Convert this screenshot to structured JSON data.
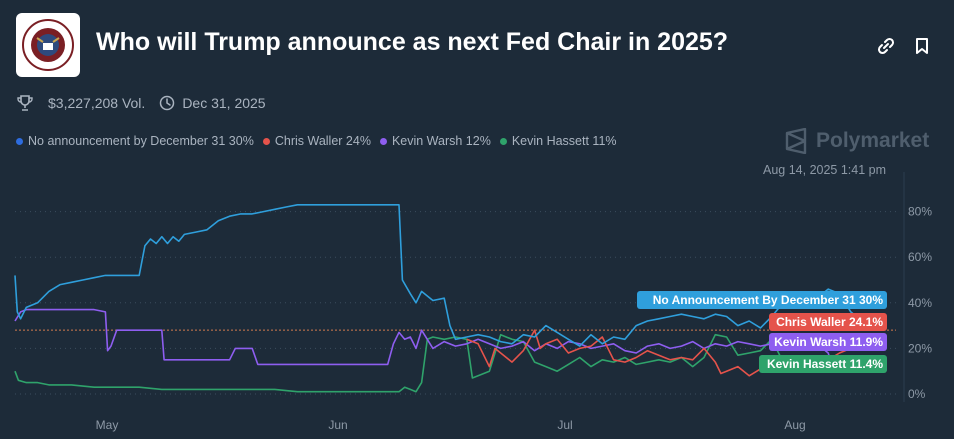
{
  "header": {
    "title": "Who will Trump announce as next Fed Chair in 2025?",
    "volume": "$3,227,208 Vol.",
    "end_date": "Dec 31, 2025",
    "brand": "Polymarket",
    "timestamp": "Aug 14, 2025 1:41 pm"
  },
  "legend": [
    {
      "label": "No announcement by December 31 30%",
      "color": "#2d6cdf"
    },
    {
      "label": "Chris Waller 24%",
      "color": "#e5534b"
    },
    {
      "label": "Kevin Warsh 12%",
      "color": "#8e5ef0"
    },
    {
      "label": "Kevin Hassett 11%",
      "color": "#2fa36b"
    }
  ],
  "chart_data": {
    "type": "line",
    "title": "Who will Trump announce as next Fed Chair in 2025?",
    "x_ticks": [
      "May",
      "Jun",
      "Jul",
      "Aug"
    ],
    "y_ticks": [
      "0%",
      "20%",
      "40%",
      "60%",
      "80%"
    ],
    "ylim": [
      0,
      90
    ],
    "grid": true,
    "reference_line": 28,
    "series": [
      {
        "name": "No Announcement By December 31",
        "end_label": "No Announcement By December 31 30%",
        "color": "#2f9fdc",
        "values": [
          [
            0,
            52
          ],
          [
            0.2,
            36
          ],
          [
            0.5,
            33
          ],
          [
            1,
            38
          ],
          [
            2,
            40
          ],
          [
            3,
            45
          ],
          [
            4,
            48
          ],
          [
            5,
            49
          ],
          [
            6,
            50
          ],
          [
            7,
            51
          ],
          [
            8,
            52
          ],
          [
            9,
            52
          ],
          [
            10,
            52
          ],
          [
            11,
            52
          ],
          [
            11.5,
            65
          ],
          [
            12,
            68
          ],
          [
            12.5,
            66
          ],
          [
            13,
            69
          ],
          [
            13.5,
            66
          ],
          [
            14,
            69
          ],
          [
            14.5,
            67
          ],
          [
            15,
            70
          ],
          [
            16,
            71
          ],
          [
            17,
            72
          ],
          [
            18,
            76
          ],
          [
            19,
            78
          ],
          [
            20,
            79
          ],
          [
            21,
            79
          ],
          [
            22,
            80
          ],
          [
            23,
            81
          ],
          [
            24,
            82
          ],
          [
            25,
            83
          ],
          [
            26,
            83
          ],
          [
            27,
            83
          ],
          [
            28,
            83
          ],
          [
            29,
            83
          ],
          [
            30,
            83
          ],
          [
            31,
            83
          ],
          [
            32,
            83
          ],
          [
            33,
            83
          ],
          [
            34,
            83
          ],
          [
            34.3,
            50
          ],
          [
            35,
            44
          ],
          [
            35.5,
            40
          ],
          [
            36,
            45
          ],
          [
            37,
            41
          ],
          [
            38,
            42
          ],
          [
            38.5,
            30
          ],
          [
            39,
            24
          ],
          [
            40,
            25
          ],
          [
            41,
            26
          ],
          [
            42,
            25
          ],
          [
            43,
            23
          ],
          [
            44,
            22
          ],
          [
            45,
            26
          ],
          [
            46,
            25
          ],
          [
            47,
            30
          ],
          [
            48,
            27
          ],
          [
            49,
            24
          ],
          [
            50,
            21
          ],
          [
            51,
            26
          ],
          [
            52,
            22
          ],
          [
            53,
            25
          ],
          [
            54,
            24
          ],
          [
            55,
            30
          ],
          [
            56,
            32
          ],
          [
            57,
            33
          ],
          [
            58,
            34
          ],
          [
            59,
            35
          ],
          [
            60,
            34
          ],
          [
            61,
            33
          ],
          [
            62,
            35
          ],
          [
            63,
            34
          ],
          [
            64,
            30
          ],
          [
            65,
            32
          ],
          [
            66,
            29
          ],
          [
            67,
            34
          ],
          [
            68,
            40
          ],
          [
            69,
            41
          ],
          [
            70,
            40
          ],
          [
            71,
            42
          ],
          [
            72,
            46
          ],
          [
            73,
            44
          ],
          [
            74,
            36
          ],
          [
            75,
            32
          ],
          [
            76,
            33
          ],
          [
            76.8,
            30
          ]
        ]
      },
      {
        "name": "Chris Waller",
        "end_label": "Chris Waller 24.1%",
        "color": "#e5534b",
        "values": [
          [
            40,
            24
          ],
          [
            41,
            22
          ],
          [
            42,
            12
          ],
          [
            42.5,
            20
          ],
          [
            43,
            18
          ],
          [
            44,
            14
          ],
          [
            45,
            19
          ],
          [
            46,
            28
          ],
          [
            46.5,
            20
          ],
          [
            47,
            22
          ],
          [
            48,
            24
          ],
          [
            49,
            18
          ],
          [
            50,
            20
          ],
          [
            51,
            21
          ],
          [
            52,
            25
          ],
          [
            53,
            15
          ],
          [
            54,
            14
          ],
          [
            55,
            16
          ],
          [
            56,
            19
          ],
          [
            57,
            17
          ],
          [
            58,
            15
          ],
          [
            59,
            16
          ],
          [
            60,
            15
          ],
          [
            61,
            20
          ],
          [
            62,
            14
          ],
          [
            62.5,
            9
          ],
          [
            63,
            10
          ],
          [
            64,
            12
          ],
          [
            65,
            8
          ],
          [
            66,
            11
          ],
          [
            67,
            10
          ],
          [
            68,
            12
          ],
          [
            69,
            10
          ],
          [
            70,
            15
          ],
          [
            71,
            16
          ],
          [
            72,
            15
          ],
          [
            73,
            18
          ],
          [
            74,
            20
          ],
          [
            75,
            22
          ],
          [
            76,
            24
          ],
          [
            76.8,
            24.1
          ]
        ]
      },
      {
        "name": "Kevin Warsh",
        "end_label": "Kevin Warsh 11.9%",
        "color": "#8e5ef0",
        "values": [
          [
            0,
            32
          ],
          [
            0.5,
            36
          ],
          [
            1,
            37
          ],
          [
            3,
            37
          ],
          [
            5,
            37
          ],
          [
            7,
            37
          ],
          [
            8,
            36
          ],
          [
            8.2,
            19
          ],
          [
            8.5,
            21
          ],
          [
            9,
            28
          ],
          [
            10,
            28
          ],
          [
            11,
            28
          ],
          [
            12,
            28
          ],
          [
            13,
            28
          ],
          [
            13.2,
            15
          ],
          [
            14,
            15
          ],
          [
            16,
            15
          ],
          [
            18,
            15
          ],
          [
            19,
            15
          ],
          [
            19.5,
            20
          ],
          [
            20,
            20
          ],
          [
            21,
            20
          ],
          [
            21.5,
            13
          ],
          [
            22,
            13
          ],
          [
            24,
            13
          ],
          [
            26,
            13
          ],
          [
            28,
            13
          ],
          [
            30,
            13
          ],
          [
            32,
            13
          ],
          [
            33,
            13
          ],
          [
            33.5,
            22
          ],
          [
            34,
            27
          ],
          [
            34.5,
            24
          ],
          [
            35,
            25
          ],
          [
            35.5,
            20
          ],
          [
            36,
            28
          ],
          [
            37,
            20
          ],
          [
            38,
            23
          ],
          [
            39,
            21
          ],
          [
            40,
            22
          ],
          [
            41,
            24
          ],
          [
            42,
            22
          ],
          [
            43,
            20
          ],
          [
            44,
            21
          ],
          [
            45,
            23
          ],
          [
            46,
            19
          ],
          [
            47,
            22
          ],
          [
            48,
            20
          ],
          [
            49,
            23
          ],
          [
            50,
            22
          ],
          [
            51,
            20
          ],
          [
            52,
            21
          ],
          [
            53,
            22
          ],
          [
            54,
            19
          ],
          [
            55,
            18
          ],
          [
            56,
            21
          ],
          [
            57,
            22
          ],
          [
            58,
            20
          ],
          [
            59,
            21
          ],
          [
            60,
            23
          ],
          [
            61,
            20
          ],
          [
            62,
            22
          ],
          [
            63,
            21
          ],
          [
            64,
            23
          ],
          [
            65,
            22
          ],
          [
            66,
            21
          ],
          [
            67,
            22
          ],
          [
            68,
            20
          ],
          [
            69,
            22
          ],
          [
            70,
            21
          ],
          [
            71,
            22
          ],
          [
            72,
            18
          ],
          [
            72.5,
            10
          ],
          [
            73,
            16
          ],
          [
            74,
            14
          ],
          [
            75,
            12
          ],
          [
            76,
            12
          ],
          [
            76.8,
            11.9
          ]
        ]
      },
      {
        "name": "Kevin Hassett",
        "end_label": "Kevin Hassett 11.4%",
        "color": "#2fa36b",
        "values": [
          [
            0,
            10
          ],
          [
            0.3,
            6
          ],
          [
            1,
            5
          ],
          [
            2,
            5
          ],
          [
            3,
            4
          ],
          [
            5,
            4
          ],
          [
            7,
            3
          ],
          [
            9,
            3
          ],
          [
            11,
            3
          ],
          [
            13,
            2
          ],
          [
            15,
            2
          ],
          [
            17,
            2
          ],
          [
            19,
            2
          ],
          [
            21,
            2
          ],
          [
            23,
            2
          ],
          [
            25,
            1
          ],
          [
            27,
            1
          ],
          [
            29,
            1
          ],
          [
            31,
            1
          ],
          [
            33,
            1
          ],
          [
            34,
            1
          ],
          [
            34.5,
            3
          ],
          [
            35,
            2
          ],
          [
            35.5,
            1
          ],
          [
            36,
            5
          ],
          [
            36.5,
            24
          ],
          [
            37,
            25
          ],
          [
            38,
            24
          ],
          [
            39,
            25
          ],
          [
            40,
            24
          ],
          [
            40.5,
            7
          ],
          [
            41,
            8
          ],
          [
            42,
            10
          ],
          [
            43,
            26
          ],
          [
            44,
            24
          ],
          [
            45,
            23
          ],
          [
            46,
            14
          ],
          [
            47,
            12
          ],
          [
            48,
            10
          ],
          [
            49,
            13
          ],
          [
            50,
            16
          ],
          [
            51,
            12
          ],
          [
            52,
            15
          ],
          [
            53,
            14
          ],
          [
            54,
            16
          ],
          [
            55,
            13
          ],
          [
            56,
            14
          ],
          [
            57,
            15
          ],
          [
            58,
            14
          ],
          [
            59,
            16
          ],
          [
            60,
            12
          ],
          [
            61,
            16
          ],
          [
            62,
            26
          ],
          [
            63,
            25
          ],
          [
            64,
            17
          ],
          [
            65,
            18
          ],
          [
            66,
            19
          ],
          [
            67,
            24
          ],
          [
            68,
            14
          ],
          [
            69,
            13
          ],
          [
            70,
            13
          ],
          [
            71,
            13
          ],
          [
            72,
            14
          ],
          [
            73,
            12
          ],
          [
            74,
            13
          ],
          [
            75,
            12
          ],
          [
            76,
            11
          ],
          [
            76.8,
            11.4
          ]
        ]
      }
    ]
  }
}
